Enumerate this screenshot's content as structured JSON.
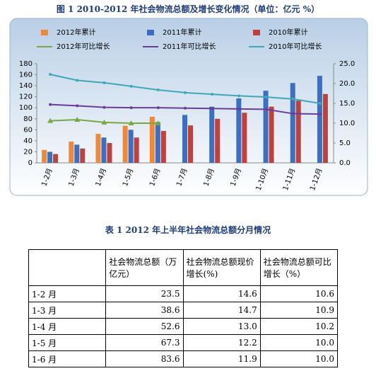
{
  "figure_title": "图 1  2010-2012 年社会物流总额及增长变化情况（单位：亿元   %）",
  "chart_data": {
    "type": "bar_line",
    "categories": [
      "1-2月",
      "1-3月",
      "1-4月",
      "1-5月",
      "1-6月",
      "1-7月",
      "1-8月",
      "1-9月",
      "1-10月",
      "1-11月",
      "1-12月"
    ],
    "series": [
      {
        "name": "2012年累计",
        "color": "#f0883a",
        "kind": "bar",
        "values": [
          23.5,
          38.6,
          52.6,
          67.3,
          83.6,
          null,
          null,
          null,
          null,
          null,
          null
        ]
      },
      {
        "name": "2011年累计",
        "color": "#3a6fc4",
        "kind": "bar",
        "values": [
          20,
          33,
          46,
          60,
          74,
          87,
          102,
          117,
          131,
          145,
          158
        ]
      },
      {
        "name": "2010年累计",
        "color": "#c0413b",
        "kind": "bar",
        "values": [
          16,
          26,
          36,
          46,
          58,
          68,
          80,
          91,
          102,
          113,
          125
        ]
      },
      {
        "name": "2012年可比增长",
        "color": "#77a844",
        "kind": "line",
        "axis": "y2",
        "values": [
          10.6,
          10.9,
          10.2,
          10.0,
          10.0,
          null,
          null,
          null,
          null,
          null,
          null
        ]
      },
      {
        "name": "2011年可比增长",
        "color": "#6a3d9a",
        "kind": "line",
        "axis": "y2",
        "values": [
          14.7,
          14.4,
          14.0,
          13.9,
          13.9,
          13.8,
          13.7,
          13.6,
          13.5,
          12.4,
          12.3
        ]
      },
      {
        "name": "2010年可比增长",
        "color": "#3fa8b8",
        "kind": "line",
        "axis": "y2",
        "values": [
          22.3,
          20.8,
          20.2,
          19.3,
          18.4,
          17.7,
          17.3,
          16.9,
          16.6,
          16.1,
          15.0
        ]
      }
    ],
    "ylim": [
      0,
      180
    ],
    "yticks": [
      0,
      20,
      40,
      60,
      80,
      100,
      120,
      140,
      160,
      180
    ],
    "y2lim": [
      0,
      25
    ],
    "y2ticks": [
      {
        "value": 0,
        "label": "0.0"
      },
      {
        "value": 5,
        "label": "5.0"
      },
      {
        "value": 10,
        "label": "10.0"
      },
      {
        "value": 15,
        "label": "15.0"
      },
      {
        "value": 20,
        "label": "20.0"
      },
      {
        "value": 25,
        "label": "25.0"
      }
    ]
  },
  "table": {
    "title": "表 1  2012 年上半年社会物流总额分月情况",
    "header": [
      "社会物流总额（万亿元）",
      "社会物流总额现价增长(%)",
      "社会物流总额可比增长（%）"
    ],
    "rows": [
      [
        "1-2 月",
        "23.5",
        "14.6",
        "10.6"
      ],
      [
        "1-3 月",
        "38.6",
        "14.7",
        "10.9"
      ],
      [
        "1-4 月",
        "52.6",
        "13.0",
        "10.2"
      ],
      [
        "1-5 月",
        "67.3",
        "12.2",
        "10.0"
      ],
      [
        "1-6 月",
        "83.6",
        "11.9",
        "10.0"
      ]
    ]
  }
}
